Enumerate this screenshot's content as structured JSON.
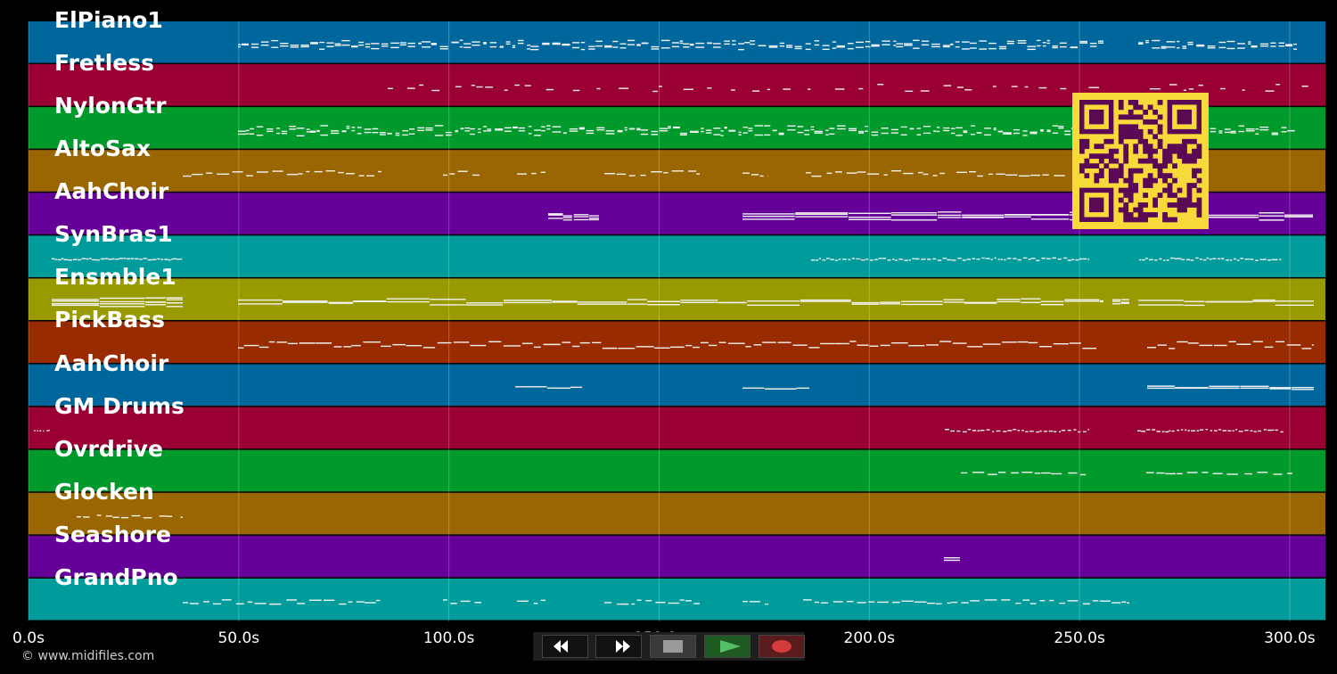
{
  "tracks": [
    {
      "label": "ElPiano1",
      "color": "#00679d"
    },
    {
      "label": "Fretless",
      "color": "#9a0034"
    },
    {
      "label": "NylonGtr",
      "color": "#00992b"
    },
    {
      "label": "AltoSax",
      "color": "#9a6601"
    },
    {
      "label": "AahChoir",
      "color": "#650098"
    },
    {
      "label": "SynBras1",
      "color": "#009b9b"
    },
    {
      "label": "Ensmble1",
      "color": "#999a00"
    },
    {
      "label": "PickBass",
      "color": "#992b00"
    },
    {
      "label": "AahChoir",
      "color": "#00679d"
    },
    {
      "label": "GM Drums",
      "color": "#9a0034"
    },
    {
      "label": "Ovrdrive",
      "color": "#00992b"
    },
    {
      "label": "Glocken",
      "color": "#9a6601"
    },
    {
      "label": "Seashore",
      "color": "#650098"
    },
    {
      "label": "GrandPno",
      "color": "#009b9b"
    }
  ],
  "timeline": {
    "ticks": [
      "0.0s",
      "50.0s",
      "100.0s",
      "150.0s",
      "200.0s",
      "250.0s",
      "300.0s"
    ],
    "tick_seconds": [
      0,
      50,
      100,
      150,
      200,
      250,
      300
    ]
  },
  "copyright": "© www.midifiles.com",
  "transport": {
    "rewind_icon": "rewind-icon",
    "forward_icon": "fast-forward-icon",
    "stop_icon": "stop-icon",
    "play_icon": "play-icon",
    "record_icon": "record-icon"
  },
  "qr_colors": {
    "fg": "#5a0a55",
    "bg": "#f7d93a"
  }
}
